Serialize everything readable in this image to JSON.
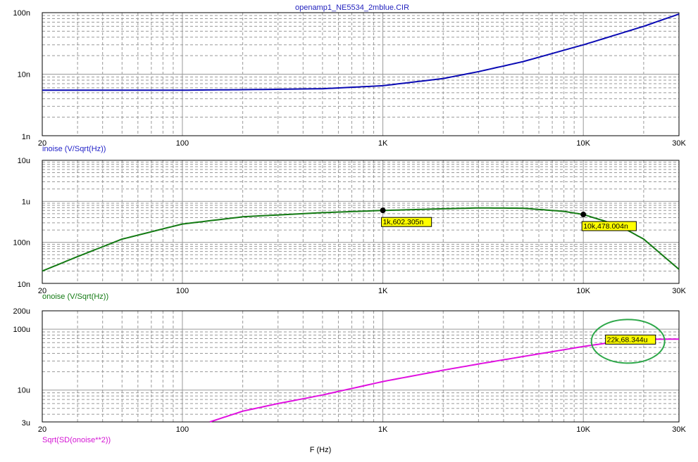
{
  "title": "openamp1_NE5534_2mblue.CIR",
  "xlabel": "F (Hz)",
  "colors": {
    "inoise": "#0a0ab4",
    "onoise": "#137a13",
    "sqrt_sd": "#e010e0",
    "frame": "#000000",
    "grid": "#9a9a9a",
    "callout_fill": "#ffff00",
    "highlight_ellipse": "#2ea84a",
    "title_text": "#1f1fbd",
    "label_blue": "#2323c8",
    "label_green": "#137a13",
    "label_magenta": "#d414d4"
  },
  "chart_data": [
    {
      "type": "line",
      "name": "inoise (V/Sqrt(Hz))",
      "x_scale": "log",
      "y_scale": "log",
      "xlim": [
        20,
        30000
      ],
      "ylim": [
        1e-09,
        1e-07
      ],
      "y_tick_labels": [
        {
          "value": 1e-07,
          "label": "100n"
        },
        {
          "value": 1e-08,
          "label": "10n"
        },
        {
          "value": 1e-09,
          "label": "1n"
        }
      ],
      "series": [
        {
          "name": "inoise (V/Sqrt(Hz))",
          "x": [
            20,
            50,
            100,
            200,
            500,
            1000,
            2000,
            3000,
            5000,
            10000,
            20000,
            30000
          ],
          "values": [
            5.5e-09,
            5.5e-09,
            5.5e-09,
            5.6e-09,
            5.8e-09,
            6.5e-09,
            8.5e-09,
            1.1e-08,
            1.6e-08,
            3e-08,
            6e-08,
            9.5e-08
          ]
        }
      ],
      "annotations": []
    },
    {
      "type": "line",
      "name": "onoise (V/Sqrt(Hz))",
      "x_scale": "log",
      "y_scale": "log",
      "xlim": [
        20,
        30000
      ],
      "ylim": [
        1e-08,
        1e-05
      ],
      "y_tick_labels": [
        {
          "value": 1e-05,
          "label": "10u"
        },
        {
          "value": 1e-06,
          "label": "1u"
        },
        {
          "value": 1e-07,
          "label": "100n"
        },
        {
          "value": 1e-08,
          "label": "10n"
        }
      ],
      "series": [
        {
          "name": "onoise (V/Sqrt(Hz))",
          "x": [
            20,
            30,
            50,
            100,
            200,
            500,
            1000,
            2000,
            3000,
            5000,
            8000,
            10000,
            15000,
            20000,
            30000
          ],
          "values": [
            2e-08,
            4.5e-08,
            1.2e-07,
            2.8e-07,
            4.2e-07,
            5.3e-07,
            6e-07,
            6.6e-07,
            6.9e-07,
            6.8e-07,
            5.7e-07,
            4.78e-07,
            2.6e-07,
            1.2e-07,
            2.2e-08
          ]
        }
      ],
      "annotations": [
        {
          "x": 1000,
          "y": 6.02305e-07,
          "label": "1k,602.305n"
        },
        {
          "x": 10000,
          "y": 4.78004e-07,
          "label": "10k,478.004n"
        }
      ]
    },
    {
      "type": "line",
      "name": "Sqrt(SD(onoise**2))",
      "x_scale": "log",
      "y_scale": "log",
      "xlim": [
        20,
        30000
      ],
      "ylim": [
        3e-06,
        0.0002
      ],
      "y_tick_labels": [
        {
          "value": 0.0002,
          "label": "200u"
        },
        {
          "value": 0.0001,
          "label": "100u"
        },
        {
          "value": 1e-05,
          "label": "10u"
        },
        {
          "value": 3e-06,
          "label": "3u"
        }
      ],
      "series": [
        {
          "name": "Sqrt(SD(onoise**2))",
          "x": [
            137,
            200,
            300,
            500,
            1000,
            2000,
            3000,
            5000,
            10000,
            15000,
            22000,
            30000
          ],
          "values": [
            3e-06,
            4.5e-06,
            6e-06,
            8.3e-06,
            1.38e-05,
            2.12e-05,
            2.68e-05,
            3.55e-05,
            5.2e-05,
            6.3e-05,
            6.834e-05,
            6.85e-05
          ]
        }
      ],
      "annotations": [
        {
          "x": 22000,
          "y": 6.8344e-05,
          "label": "22k,68.344u",
          "highlighted": true
        }
      ]
    }
  ],
  "x_tick_labels": [
    {
      "value": 20,
      "label": "20"
    },
    {
      "value": 100,
      "label": "100"
    },
    {
      "value": 1000,
      "label": "1K"
    },
    {
      "value": 10000,
      "label": "10K"
    },
    {
      "value": 30000,
      "label": "30K"
    }
  ]
}
